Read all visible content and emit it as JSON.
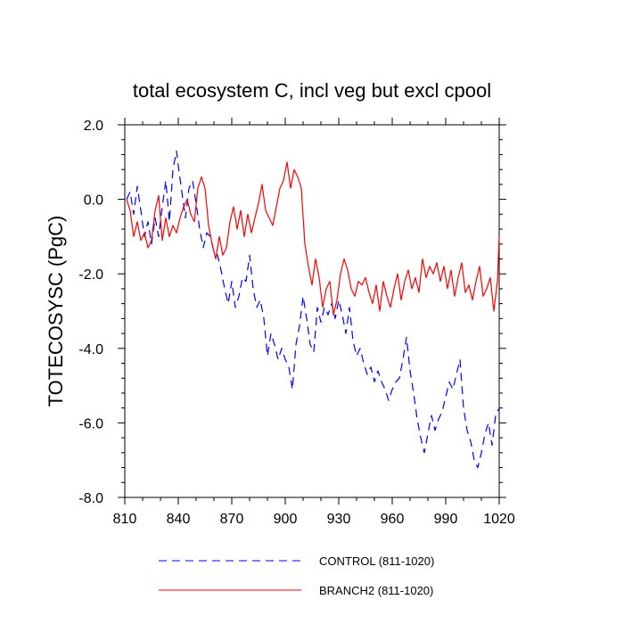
{
  "chart_data": {
    "type": "line",
    "title": "total ecosystem C, incl veg but excl cpool",
    "xlabel": "",
    "ylabel": "TOTECOSYSC  (PgC)",
    "xlim": [
      810,
      1020
    ],
    "ylim": [
      -8.0,
      2.0
    ],
    "xticks": [
      810,
      840,
      870,
      900,
      930,
      960,
      990,
      1020
    ],
    "xtick_labels": [
      "810",
      "840",
      "870",
      "900",
      "930",
      "960",
      "990",
      "1020"
    ],
    "yticks": [
      -8.0,
      -6.0,
      -4.0,
      -2.0,
      0.0,
      2.0
    ],
    "ytick_labels": [
      "-8.0",
      "-6.0",
      "-4.0",
      "-2.0",
      "0.0",
      "2.0"
    ],
    "grid": false,
    "legend_position": "bottom",
    "series": [
      {
        "name": "CONTROL (811-1020)",
        "color": "#0000ff",
        "style": "dashed",
        "x": [
          811,
          813,
          815,
          817,
          819,
          821,
          823,
          825,
          827,
          829,
          831,
          833,
          835,
          837,
          839,
          840,
          842,
          844,
          846,
          848,
          850,
          852,
          854,
          856,
          858,
          860,
          862,
          864,
          866,
          868,
          870,
          872,
          874,
          876,
          878,
          880,
          882,
          884,
          886,
          888,
          890,
          892,
          894,
          896,
          898,
          900,
          902,
          904,
          906,
          908,
          910,
          912,
          914,
          916,
          918,
          920,
          922,
          924,
          926,
          928,
          930,
          932,
          934,
          936,
          938,
          940,
          942,
          944,
          946,
          948,
          950,
          952,
          954,
          956,
          958,
          960,
          962,
          964,
          966,
          968,
          970,
          972,
          974,
          976,
          978,
          980,
          982,
          984,
          986,
          988,
          990,
          992,
          994,
          996,
          998,
          1000,
          1002,
          1004,
          1006,
          1008,
          1010,
          1012,
          1014,
          1016,
          1018,
          1020
        ],
        "values": [
          0.0,
          0.2,
          -0.4,
          0.35,
          -0.3,
          -1.0,
          -0.6,
          -1.2,
          -0.5,
          -1.0,
          -0.2,
          0.5,
          -0.6,
          0.8,
          1.3,
          0.9,
          0.2,
          -0.5,
          0.3,
          0.5,
          -0.1,
          -0.8,
          -1.3,
          -0.9,
          -1.0,
          -1.4,
          -1.5,
          -1.9,
          -2.4,
          -2.8,
          -2.2,
          -2.9,
          -2.6,
          -2.1,
          -2.2,
          -1.5,
          -2.4,
          -2.9,
          -2.7,
          -3.2,
          -4.2,
          -3.6,
          -3.9,
          -4.3,
          -4.0,
          -4.3,
          -4.5,
          -5.1,
          -3.9,
          -3.4,
          -2.6,
          -3.2,
          -3.9,
          -4.1,
          -2.9,
          -3.3,
          -2.9,
          -3.1,
          -2.8,
          -3.2,
          -2.7,
          -3.1,
          -3.6,
          -2.9,
          -3.8,
          -4.2,
          -4.0,
          -4.4,
          -4.7,
          -4.5,
          -4.9,
          -4.6,
          -4.9,
          -5.1,
          -5.4,
          -5.1,
          -4.9,
          -4.8,
          -4.3,
          -3.7,
          -4.6,
          -5.2,
          -5.9,
          -6.4,
          -6.8,
          -6.3,
          -5.8,
          -6.2,
          -5.9,
          -5.7,
          -5.3,
          -4.9,
          -5.1,
          -4.7,
          -4.3,
          -5.6,
          -6.2,
          -6.5,
          -7.0,
          -7.2,
          -6.8,
          -6.3,
          -6.0,
          -6.6,
          -5.8,
          -5.6
        ]
      },
      {
        "name": "BRANCH2 (811-1020)",
        "color": "#ff0000",
        "style": "solid",
        "x": [
          811,
          813,
          815,
          817,
          819,
          821,
          823,
          825,
          827,
          829,
          831,
          833,
          835,
          837,
          839,
          841,
          843,
          845,
          847,
          849,
          851,
          853,
          855,
          857,
          859,
          861,
          863,
          865,
          867,
          869,
          871,
          873,
          875,
          877,
          879,
          881,
          883,
          885,
          887,
          889,
          891,
          893,
          895,
          897,
          899,
          901,
          903,
          905,
          907,
          909,
          911,
          913,
          915,
          917,
          919,
          921,
          923,
          925,
          927,
          929,
          931,
          933,
          935,
          937,
          939,
          941,
          943,
          945,
          947,
          949,
          951,
          953,
          955,
          957,
          959,
          961,
          963,
          965,
          967,
          969,
          971,
          973,
          975,
          977,
          979,
          981,
          983,
          985,
          987,
          989,
          991,
          993,
          995,
          997,
          999,
          1001,
          1003,
          1005,
          1007,
          1009,
          1011,
          1013,
          1015,
          1017,
          1019,
          1020
        ],
        "values": [
          0.0,
          -0.3,
          -1.0,
          -0.6,
          -1.1,
          -0.9,
          -1.3,
          -1.1,
          -0.3,
          0.1,
          -1.1,
          -0.5,
          -1.0,
          -0.7,
          -0.9,
          -0.5,
          -0.2,
          0.0,
          -0.4,
          -0.6,
          0.3,
          0.6,
          0.3,
          -0.7,
          -1.2,
          -1.6,
          -1.0,
          -1.5,
          -1.3,
          -0.6,
          -0.2,
          -0.8,
          -0.3,
          -1.0,
          -0.4,
          -0.9,
          -0.5,
          -0.1,
          0.4,
          -0.3,
          -0.5,
          -0.7,
          -0.2,
          0.3,
          0.5,
          1.0,
          0.3,
          0.8,
          0.6,
          0.3,
          -1.2,
          -1.8,
          -2.3,
          -1.6,
          -2.1,
          -2.9,
          -2.4,
          -2.2,
          -3.1,
          -2.7,
          -2.0,
          -1.6,
          -1.9,
          -2.4,
          -2.6,
          -2.2,
          -2.3,
          -2.1,
          -2.5,
          -2.8,
          -2.3,
          -3.0,
          -2.2,
          -2.6,
          -2.9,
          -2.4,
          -2.0,
          -2.7,
          -2.2,
          -1.9,
          -2.4,
          -2.1,
          -2.5,
          -1.6,
          -2.1,
          -1.8,
          -2.0,
          -1.7,
          -2.2,
          -1.8,
          -2.4,
          -1.9,
          -2.6,
          -2.1,
          -1.7,
          -2.5,
          -2.3,
          -2.7,
          -2.2,
          -1.8,
          -2.6,
          -2.4,
          -2.1,
          -3.0,
          -2.2,
          -1.0
        ]
      }
    ]
  }
}
